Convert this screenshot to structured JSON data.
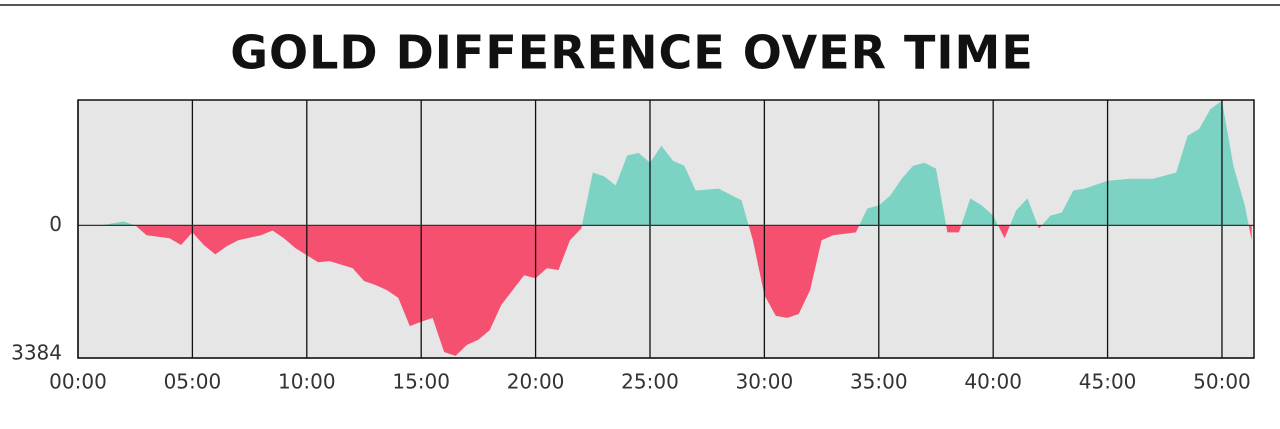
{
  "chart_data": {
    "type": "area",
    "title": "GOLD DIFFERENCE OVER TIME",
    "x": [
      0,
      1,
      2,
      2.5,
      3,
      4,
      4.5,
      5,
      5.5,
      6,
      6.5,
      7,
      8,
      8.5,
      9,
      9.5,
      10,
      10.5,
      11,
      12,
      12.5,
      13,
      13.5,
      14,
      14.5,
      15,
      15.5,
      16,
      16.5,
      17,
      17.5,
      18,
      18.5,
      19,
      19.5,
      20,
      20.5,
      21,
      21.5,
      22,
      22.5,
      23,
      23.5,
      24,
      24.5,
      25,
      25.5,
      26,
      26.5,
      27,
      28,
      29,
      29.5,
      30,
      30.5,
      31,
      31.5,
      32,
      32.5,
      33,
      34,
      34.5,
      35,
      35.5,
      36,
      36.5,
      37,
      37.5,
      38,
      38.5,
      39,
      39.5,
      40,
      40.5,
      41,
      41.5,
      42,
      42.5,
      43,
      43.5,
      44,
      45,
      46,
      47,
      48,
      48.5,
      49,
      49.5,
      50,
      50.5,
      51,
      51.3
    ],
    "values": [
      0,
      0,
      100,
      0,
      -250,
      -330,
      -500,
      -180,
      -500,
      -740,
      -530,
      -380,
      -250,
      -130,
      -330,
      -580,
      -760,
      -940,
      -910,
      -1090,
      -1420,
      -1520,
      -1650,
      -1850,
      -2570,
      -2460,
      -2360,
      -3230,
      -3330,
      -3050,
      -2920,
      -2670,
      -2030,
      -1650,
      -1270,
      -1350,
      -1090,
      -1140,
      -380,
      -80,
      1350,
      1250,
      1020,
      1780,
      1850,
      1600,
      2030,
      1650,
      1520,
      890,
      940,
      640,
      -380,
      -1780,
      -2310,
      -2360,
      -2260,
      -1650,
      -380,
      -250,
      -180,
      430,
      510,
      760,
      1190,
      1520,
      1600,
      1450,
      -180,
      -180,
      690,
      510,
      250,
      -330,
      380,
      690,
      -80,
      250,
      330,
      890,
      940,
      1140,
      1190,
      1190,
      1350,
      2290,
      2460,
      2970,
      3180,
      1520,
      510,
      -380
    ],
    "positive_color": "#7dd3c3",
    "negative_color": "#f5506f",
    "xlim": [
      0,
      51.4
    ],
    "xticks": [
      {
        "value": 0,
        "label": "00:00"
      },
      {
        "value": 5,
        "label": "05:00"
      },
      {
        "value": 10,
        "label": "10:00"
      },
      {
        "value": 15,
        "label": "15:00"
      },
      {
        "value": 20,
        "label": "20:00"
      },
      {
        "value": 25,
        "label": "25:00"
      },
      {
        "value": 30,
        "label": "30:00"
      },
      {
        "value": 35,
        "label": "35:00"
      },
      {
        "value": 40,
        "label": "40:00"
      },
      {
        "value": 45,
        "label": "45:00"
      },
      {
        "value": 50,
        "label": "50:00"
      }
    ],
    "ylim": [
      -3384,
      3200
    ],
    "yticks": [
      0,
      {
        "value": -3384,
        "label": "3384"
      }
    ],
    "grid": true
  }
}
